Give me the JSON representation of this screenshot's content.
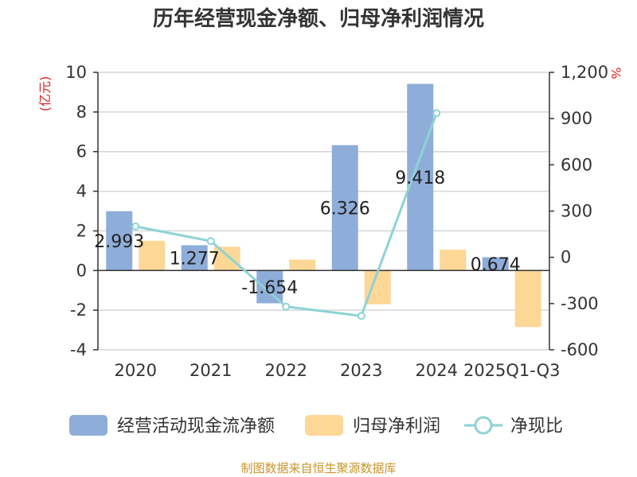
{
  "chart_data": {
    "type": "bar",
    "title": "历年经营现金净额、归母净利润情况",
    "categories": [
      "2020",
      "2021",
      "2022",
      "2023",
      "2024",
      "2025Q1-Q3"
    ],
    "series": [
      {
        "name": "经营活动现金流净额",
        "type": "bar",
        "axis": "left",
        "color": "#8eadd9",
        "values": [
          2.993,
          1.277,
          -1.654,
          6.326,
          9.418,
          0.674
        ]
      },
      {
        "name": "归母净利润",
        "type": "bar",
        "axis": "left",
        "color": "#fdd796",
        "values": [
          1.5,
          1.2,
          0.55,
          -1.7,
          1.05,
          -2.85
        ]
      },
      {
        "name": "净现比",
        "type": "line",
        "axis": "right",
        "color": "#8dd3d5",
        "values": [
          200,
          105,
          -320,
          -380,
          935,
          null
        ]
      }
    ],
    "data_labels": [
      "2.993",
      "1.277",
      "-1.654",
      "6.326",
      "9.418",
      "0.674"
    ],
    "left_axis": {
      "unit": "(亿元)",
      "ylim": [
        -4,
        10
      ],
      "ticks": [
        -4,
        -2,
        0,
        2,
        4,
        6,
        8,
        10
      ]
    },
    "right_axis": {
      "unit": "%",
      "ylim": [
        -600,
        1200
      ],
      "ticks": [
        -600,
        -300,
        0,
        300,
        600,
        900,
        1200
      ]
    },
    "grid": true,
    "legend_position": "bottom"
  },
  "source": "制图数据来自恒生聚源数据库"
}
